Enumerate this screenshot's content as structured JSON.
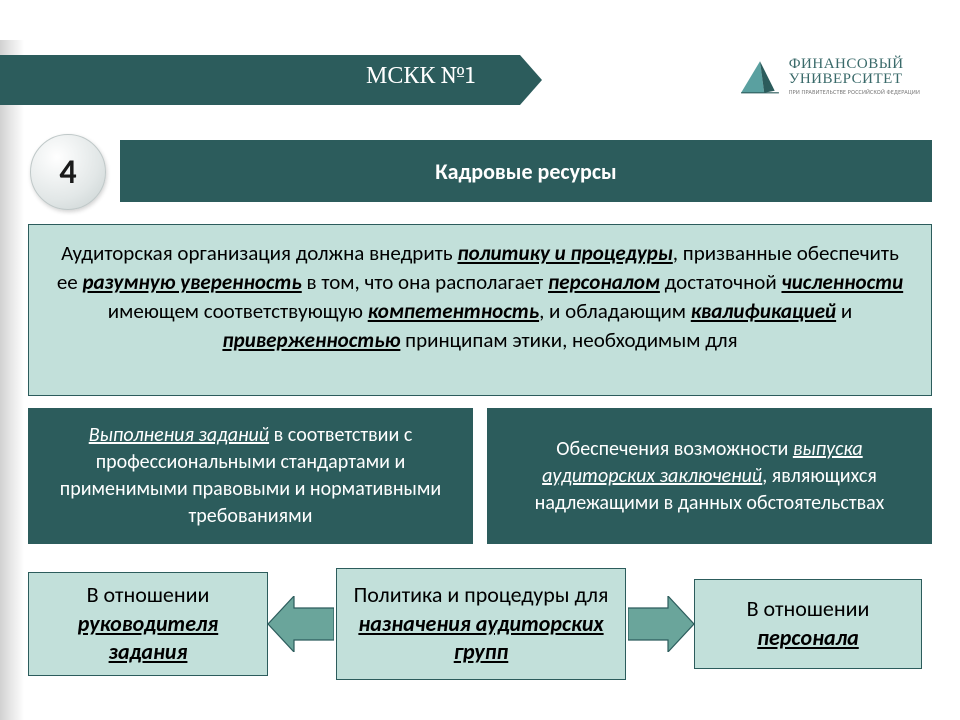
{
  "colors": {
    "primary": "#2c5c5c",
    "box_fill": "#c2e0da",
    "white": "#ffffff",
    "arrow_fill": "#6aa59b",
    "arrow_stroke": "#2c5c5c"
  },
  "header": {
    "label": "МСКК №1"
  },
  "logo": {
    "line1": "ФИНАНСОВЫЙ",
    "line2": "УНИВЕРСИТЕТ",
    "line3": "ПРИ ПРАВИТЕЛЬСТВЕ РОССИЙСКОЙ ФЕДЕРАЦИИ"
  },
  "slide_number": "4",
  "title": "Кадровые ресурсы",
  "main_paragraph": {
    "parts": [
      {
        "t": "Аудиторская организация должна внедрить "
      },
      {
        "t": "политику и процедуры",
        "em": true
      },
      {
        "t": ", призванные обеспечить ее "
      },
      {
        "t": "разумную уверенность",
        "em": true
      },
      {
        "t": " в том, что она располагает "
      },
      {
        "t": "персоналом",
        "em": true
      },
      {
        "t": " достаточной "
      },
      {
        "t": "численности",
        "em": true
      },
      {
        "t": " имеющем соответствующую "
      },
      {
        "t": "компетентность",
        "em": true
      },
      {
        "t": ", и обладающим "
      },
      {
        "t": "квалификацией",
        "em": true
      },
      {
        "t": " и "
      },
      {
        "t": "приверженностью",
        "em": true
      },
      {
        "t": " принципам этики, необходимым для"
      }
    ]
  },
  "cols": [
    {
      "parts": [
        {
          "t": "Выполнения заданий",
          "em": true
        },
        {
          "t": " в соответствии с профессиональными стандартами и применимыми правовыми и нормативными требованиями"
        }
      ]
    },
    {
      "parts": [
        {
          "t": "Обеспечения возможности "
        },
        {
          "t": "выпуска аудиторских заключений",
          "em": true
        },
        {
          "t": ", являющихся надлежащими в данных обстоятельствах"
        }
      ]
    }
  ],
  "bottom": {
    "left": {
      "parts": [
        {
          "t": "В отношении "
        },
        {
          "t": "руководителя задания",
          "em": true
        }
      ]
    },
    "mid": {
      "parts": [
        {
          "t": "Политика и процедуры для "
        },
        {
          "t": "назначения аудиторских групп",
          "em": true
        }
      ]
    },
    "right": {
      "parts": [
        {
          "t": "В отношении "
        },
        {
          "t": "персонала",
          "em": true
        }
      ]
    }
  }
}
